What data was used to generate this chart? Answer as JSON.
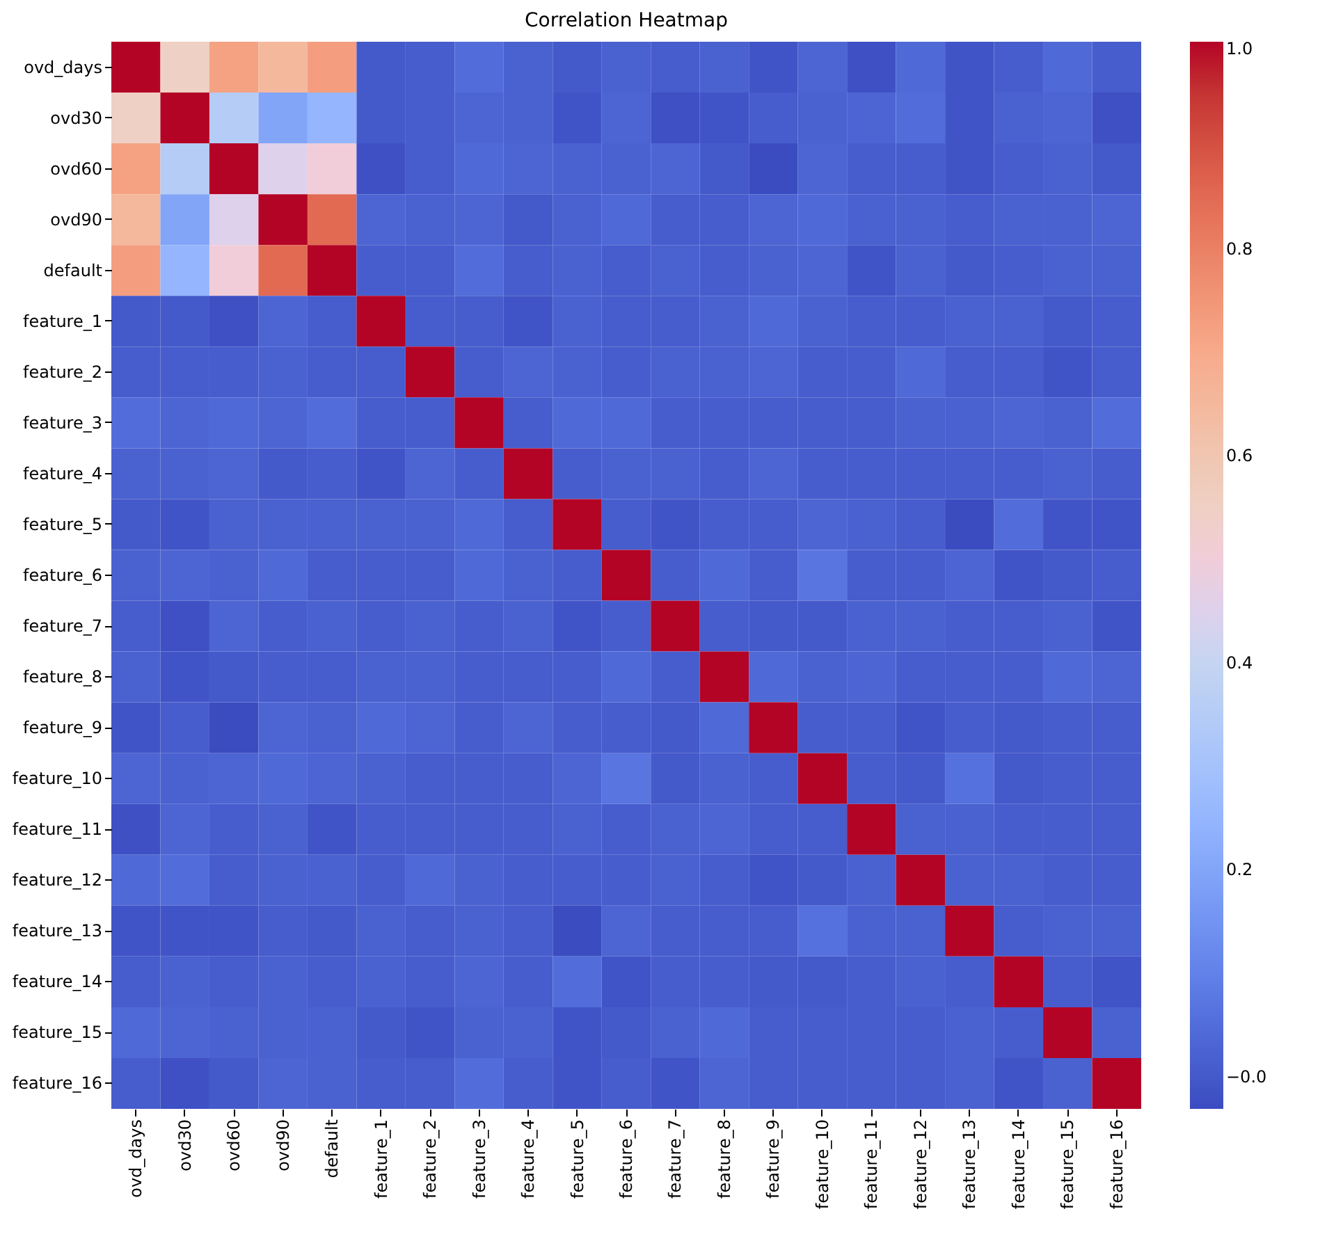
{
  "chart_data": {
    "type": "heatmap",
    "title": "Correlation Heatmap",
    "categories": [
      "ovd_days",
      "ovd30",
      "ovd60",
      "ovd90",
      "default",
      "feature_1",
      "feature_2",
      "feature_3",
      "feature_4",
      "feature_5",
      "feature_6",
      "feature_7",
      "feature_8",
      "feature_9",
      "feature_10",
      "feature_11",
      "feature_12",
      "feature_13",
      "feature_14",
      "feature_15",
      "feature_16"
    ],
    "y_categories": [
      "ovd_days",
      "ovd30",
      "ovd60",
      "ovd90",
      "default",
      "feature_1",
      "feature_2",
      "feature_3",
      "feature_4",
      "feature_5",
      "feature_6",
      "feature_7",
      "feature_8",
      "feature_9",
      "feature_10",
      "feature_11",
      "feature_12",
      "feature_13",
      "feature_14",
      "feature_15",
      "feature_16"
    ],
    "cells": [
      [
        1,
        0.55,
        0.72,
        0.65,
        0.73,
        0.0,
        0.01,
        0.05,
        0.02,
        0.0,
        0.02,
        0.01,
        0.02,
        -0.01,
        0.03,
        -0.02,
        0.04,
        -0.01,
        0.01,
        0.04,
        0.01
      ],
      [
        0.55,
        1,
        0.35,
        0.2,
        0.25,
        0.0,
        0.01,
        0.03,
        0.02,
        -0.01,
        0.03,
        -0.02,
        -0.01,
        0.01,
        0.02,
        0.03,
        0.05,
        -0.01,
        0.02,
        0.03,
        -0.02
      ],
      [
        0.72,
        0.35,
        1,
        0.45,
        0.5,
        -0.02,
        0.01,
        0.04,
        0.03,
        0.02,
        0.02,
        0.03,
        0.0,
        -0.03,
        0.03,
        0.01,
        0.01,
        -0.01,
        0.01,
        0.02,
        0.0
      ],
      [
        0.65,
        0.2,
        0.45,
        1,
        0.85,
        0.03,
        0.02,
        0.03,
        0.0,
        0.02,
        0.04,
        0.01,
        0.01,
        0.03,
        0.04,
        0.02,
        0.02,
        0.01,
        0.02,
        0.02,
        0.03
      ],
      [
        0.73,
        0.25,
        0.5,
        0.85,
        1,
        0.01,
        0.01,
        0.05,
        0.01,
        0.02,
        0.01,
        0.02,
        0.01,
        0.02,
        0.03,
        -0.01,
        0.02,
        0.0,
        0.01,
        0.02,
        0.02
      ],
      [
        0.0,
        0.0,
        -0.02,
        0.03,
        0.01,
        1,
        0.01,
        0.01,
        -0.01,
        0.02,
        0.01,
        0.01,
        0.02,
        0.04,
        0.02,
        0.01,
        0.01,
        0.02,
        0.02,
        0.0,
        0.01
      ],
      [
        0.01,
        0.01,
        0.01,
        0.02,
        0.01,
        0.01,
        1,
        0.01,
        0.03,
        0.02,
        0.01,
        0.02,
        0.02,
        0.03,
        0.01,
        0.01,
        0.04,
        0.01,
        0.01,
        -0.01,
        0.01
      ],
      [
        0.05,
        0.03,
        0.04,
        0.03,
        0.05,
        0.01,
        0.01,
        1,
        0.01,
        0.04,
        0.04,
        0.01,
        0.01,
        0.01,
        0.01,
        0.01,
        0.02,
        0.02,
        0.03,
        0.02,
        0.05
      ],
      [
        0.02,
        0.02,
        0.03,
        0.0,
        0.01,
        -0.01,
        0.03,
        0.01,
        1,
        0.01,
        0.02,
        0.02,
        0.01,
        0.03,
        0.01,
        0.01,
        0.01,
        0.01,
        0.01,
        0.02,
        0.01
      ],
      [
        0.0,
        -0.01,
        0.02,
        0.02,
        0.02,
        0.02,
        0.02,
        0.04,
        0.01,
        1,
        0.01,
        -0.01,
        0.01,
        0.01,
        0.03,
        0.02,
        0.01,
        -0.03,
        0.05,
        -0.01,
        -0.01
      ],
      [
        0.02,
        0.03,
        0.02,
        0.04,
        0.01,
        0.01,
        0.01,
        0.04,
        0.02,
        0.01,
        1,
        0.01,
        0.04,
        0.01,
        0.07,
        0.01,
        0.01,
        0.03,
        -0.01,
        0.0,
        0.01
      ],
      [
        0.01,
        -0.02,
        0.03,
        0.01,
        0.02,
        0.01,
        0.02,
        0.01,
        0.02,
        -0.01,
        0.01,
        1,
        0.01,
        0.0,
        0.0,
        0.02,
        0.02,
        0.01,
        0.01,
        0.02,
        -0.01
      ],
      [
        0.02,
        -0.01,
        0.0,
        0.01,
        0.01,
        0.02,
        0.02,
        0.01,
        0.01,
        0.01,
        0.04,
        0.01,
        1,
        0.04,
        0.02,
        0.03,
        0.01,
        0.01,
        0.01,
        0.04,
        0.03
      ],
      [
        -0.01,
        0.01,
        -0.03,
        0.03,
        0.02,
        0.04,
        0.03,
        0.01,
        0.03,
        0.01,
        0.01,
        0.0,
        0.04,
        1,
        0.01,
        0.01,
        -0.01,
        0.01,
        0.0,
        0.01,
        0.01
      ],
      [
        0.03,
        0.02,
        0.03,
        0.04,
        0.03,
        0.02,
        0.01,
        0.01,
        0.01,
        0.03,
        0.07,
        0.0,
        0.02,
        0.01,
        1,
        0.01,
        0.0,
        0.06,
        0.0,
        0.01,
        0.01
      ],
      [
        -0.02,
        0.03,
        0.01,
        0.02,
        -0.01,
        0.01,
        0.01,
        0.01,
        0.01,
        0.02,
        0.01,
        0.02,
        0.03,
        0.01,
        0.01,
        1,
        0.02,
        0.02,
        0.01,
        0.01,
        0.01
      ],
      [
        0.04,
        0.05,
        0.01,
        0.02,
        0.02,
        0.01,
        0.04,
        0.02,
        0.01,
        0.01,
        0.01,
        0.02,
        0.01,
        -0.01,
        0.0,
        0.02,
        1,
        0.02,
        0.02,
        0.01,
        0.01
      ],
      [
        -0.01,
        -0.01,
        -0.01,
        0.01,
        0.0,
        0.02,
        0.01,
        0.02,
        0.01,
        -0.03,
        0.03,
        0.01,
        0.01,
        0.01,
        0.06,
        0.02,
        0.02,
        1,
        0.01,
        0.02,
        0.02
      ],
      [
        0.01,
        0.02,
        0.01,
        0.02,
        0.01,
        0.02,
        0.01,
        0.03,
        0.01,
        0.05,
        -0.01,
        0.01,
        0.01,
        0.0,
        0.0,
        0.01,
        0.02,
        0.01,
        1,
        0.01,
        -0.01
      ],
      [
        0.04,
        0.03,
        0.02,
        0.02,
        0.02,
        0.0,
        -0.01,
        0.02,
        0.02,
        -0.01,
        0.0,
        0.02,
        0.04,
        0.01,
        0.01,
        0.01,
        0.01,
        0.02,
        0.01,
        1,
        0.02
      ],
      [
        0.01,
        -0.02,
        0.0,
        0.03,
        0.02,
        0.01,
        0.01,
        0.05,
        0.01,
        -0.01,
        0.01,
        -0.01,
        0.03,
        0.01,
        0.01,
        0.01,
        0.01,
        0.02,
        -0.01,
        0.02,
        1
      ]
    ],
    "clim": [
      -0.031,
      1.0
    ],
    "cticks": [
      {
        "value": 0,
        "label": "−0.0"
      },
      {
        "value": 0.2,
        "label": "0.2"
      },
      {
        "value": 0.4,
        "label": "0.4"
      },
      {
        "value": 0.6,
        "label": "0.6"
      },
      {
        "value": 0.8,
        "label": "0.8"
      },
      {
        "value": 1.0,
        "label": "1.0"
      }
    ]
  }
}
